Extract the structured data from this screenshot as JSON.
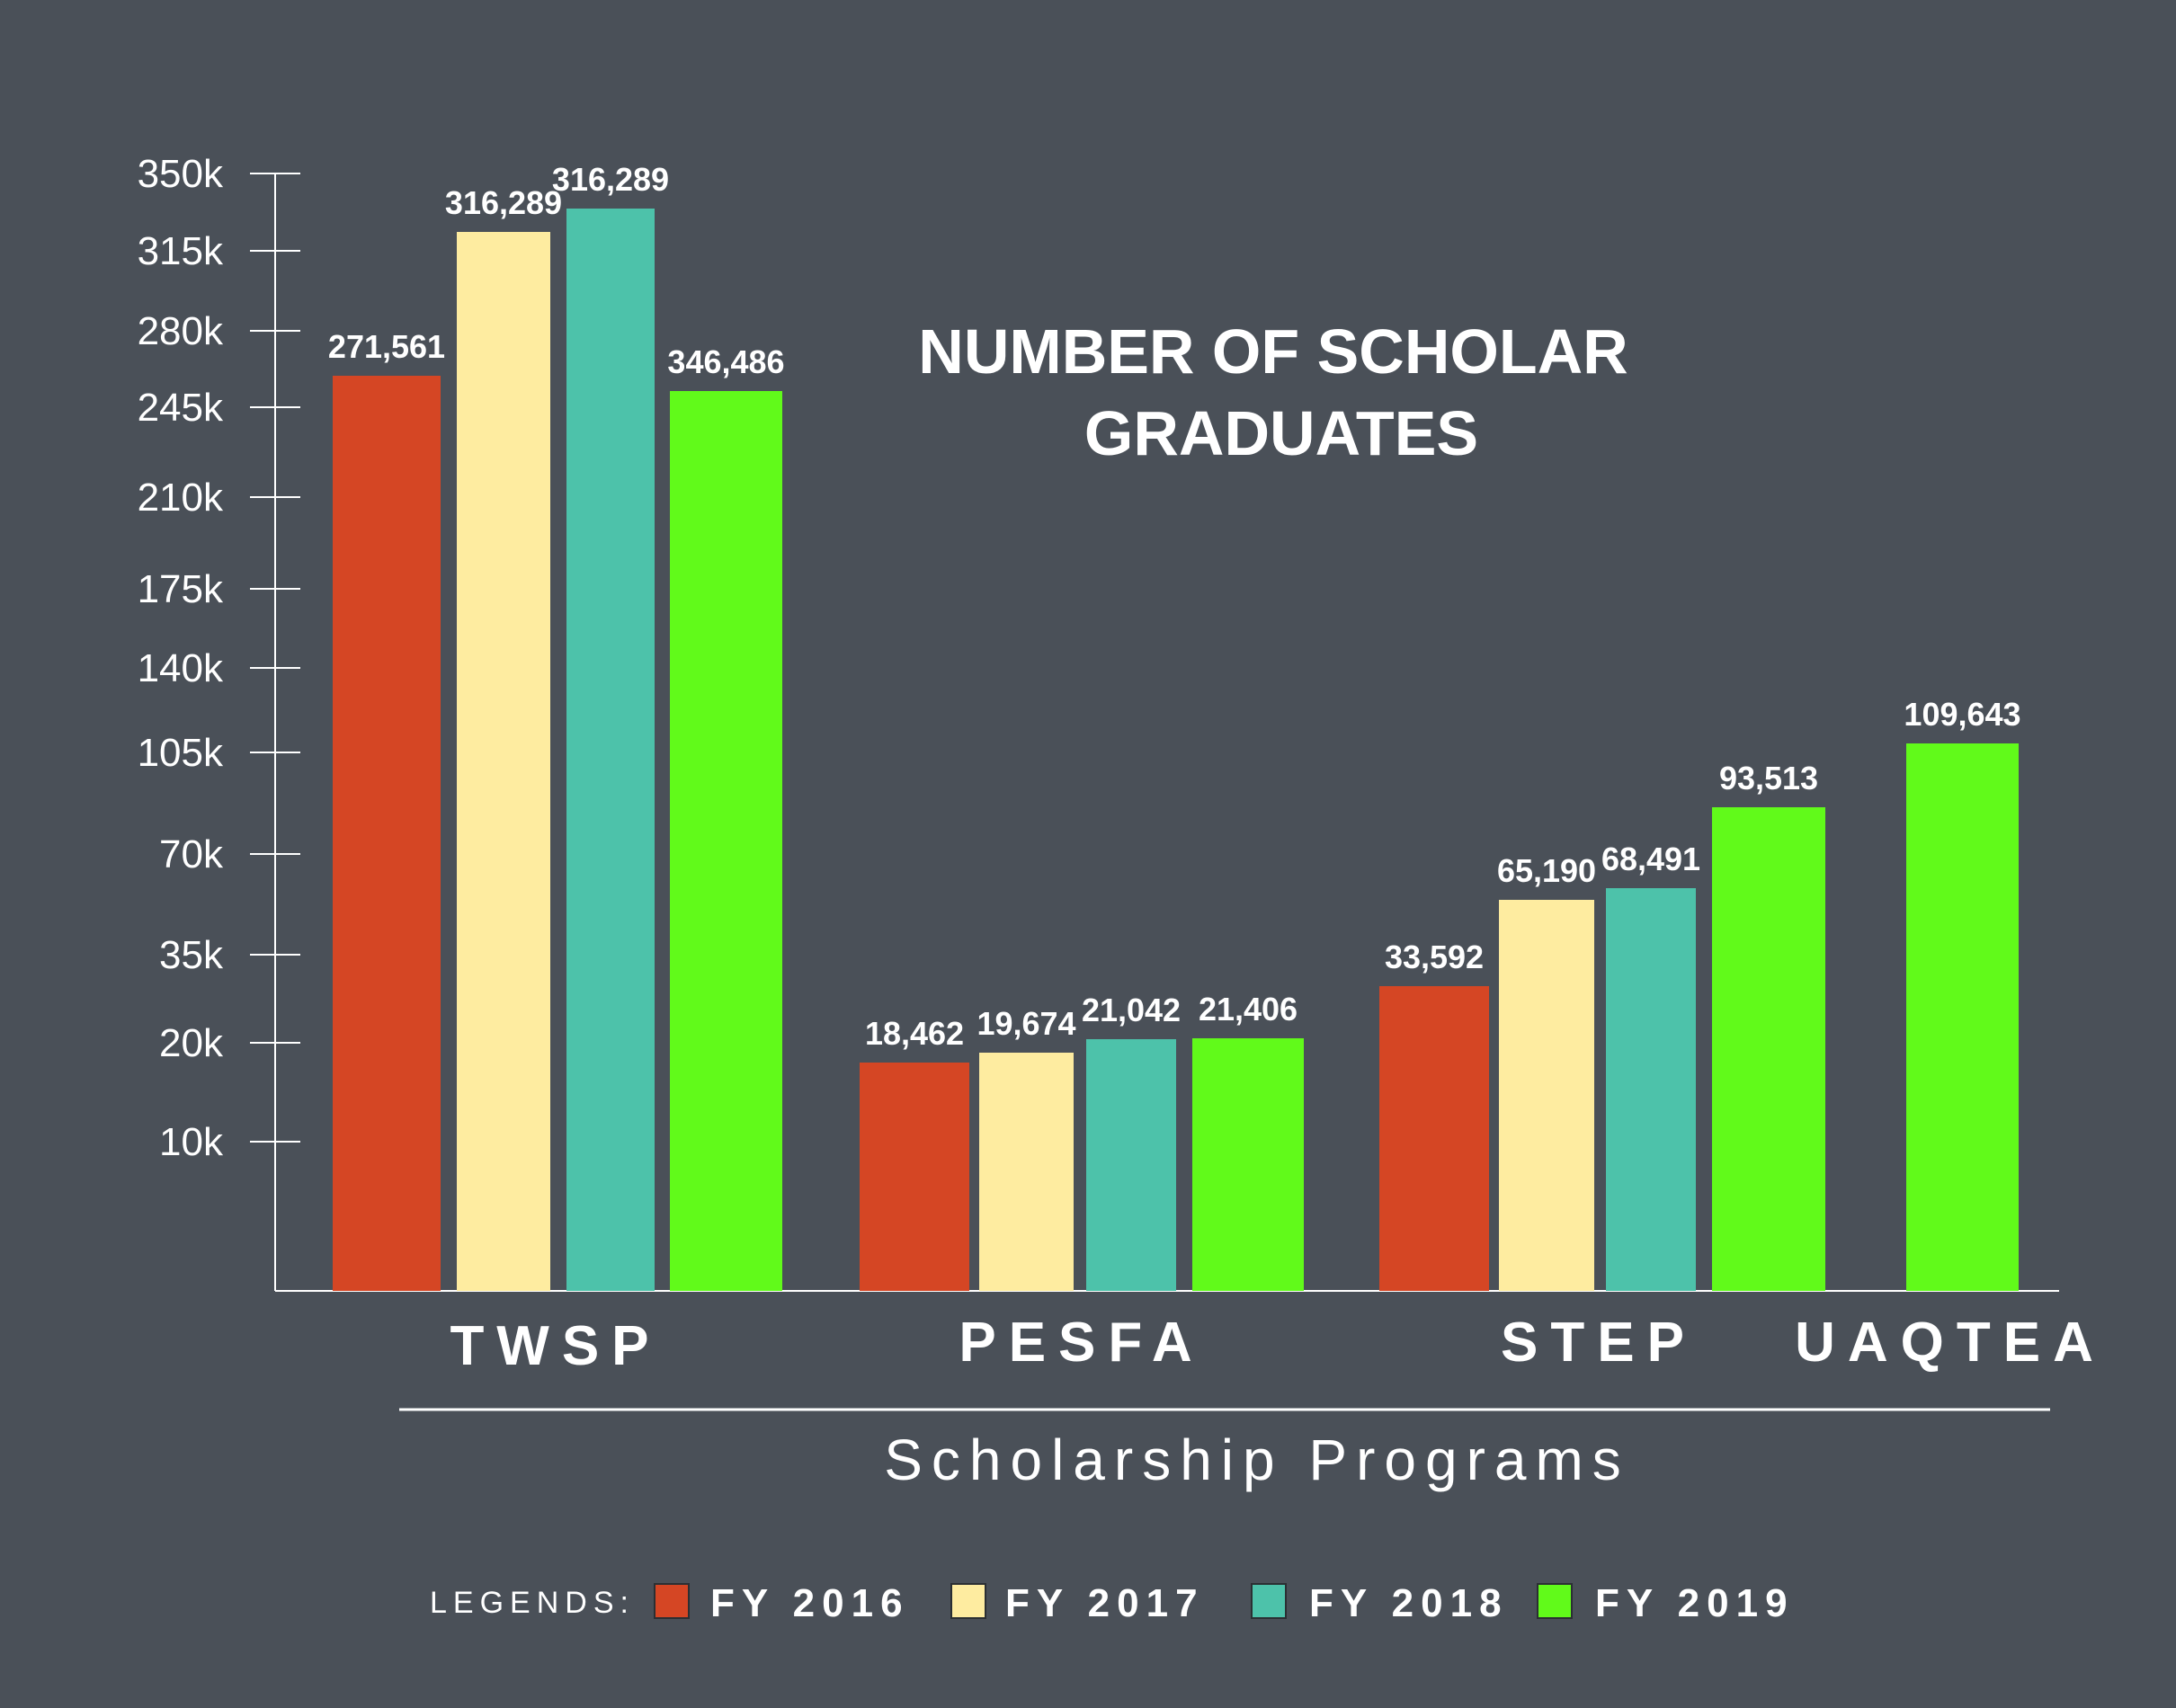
{
  "colors": {
    "background": "#4a5058",
    "axis": "#ffffff",
    "text": "#ffffff",
    "fy2016": "#d54624",
    "fy2017": "#feeca0",
    "fy2018": "#4dc2aa",
    "fy2019": "#61fa1a"
  },
  "chart_data": {
    "type": "bar",
    "title": "NUMBER OF SCHOLAR GRADUATES",
    "title_lines": [
      "NUMBER OF SCHOLAR",
      "GRADUATES"
    ],
    "xlabel": "Scholarship Programs",
    "ylabel": "",
    "categories": [
      "TWSP",
      "PESFA",
      "STEP",
      "UAQTEA"
    ],
    "y_ticks": [
      {
        "label": "350k",
        "value": 350000
      },
      {
        "label": "315k",
        "value": 315000
      },
      {
        "label": "280k",
        "value": 280000
      },
      {
        "label": "245k",
        "value": 245000
      },
      {
        "label": "210k",
        "value": 210000
      },
      {
        "label": "175k",
        "value": 175000
      },
      {
        "label": "140k",
        "value": 140000
      },
      {
        "label": "105k",
        "value": 105000
      },
      {
        "label": "70k",
        "value": 70000
      },
      {
        "label": "35k",
        "value": 35000
      },
      {
        "label": "20k",
        "value": 20000
      },
      {
        "label": "10k",
        "value": 10000
      }
    ],
    "ylim": [
      0,
      350000
    ],
    "grid": false,
    "legend_title": "LEGENDS:",
    "legend_position": "bottom",
    "series": [
      {
        "name": "FY 2016",
        "values": [
          271561,
          18462,
          33592,
          null
        ],
        "labels": [
          "271,561",
          "18,462",
          "33,592",
          null
        ]
      },
      {
        "name": "FY 2017",
        "values": [
          316289,
          19674,
          65190,
          null
        ],
        "labels": [
          "316,289",
          "19,674",
          "65,190",
          null
        ]
      },
      {
        "name": "FY 2018",
        "values": [
          316289,
          21042,
          68491,
          null
        ],
        "labels": [
          "316,289",
          "21,042",
          "68,491",
          null
        ]
      },
      {
        "name": "FY 2019",
        "values": [
          346486,
          21406,
          93513,
          109643
        ],
        "labels": [
          "346,486",
          "21,406",
          "93,513",
          "109,643"
        ]
      }
    ]
  }
}
